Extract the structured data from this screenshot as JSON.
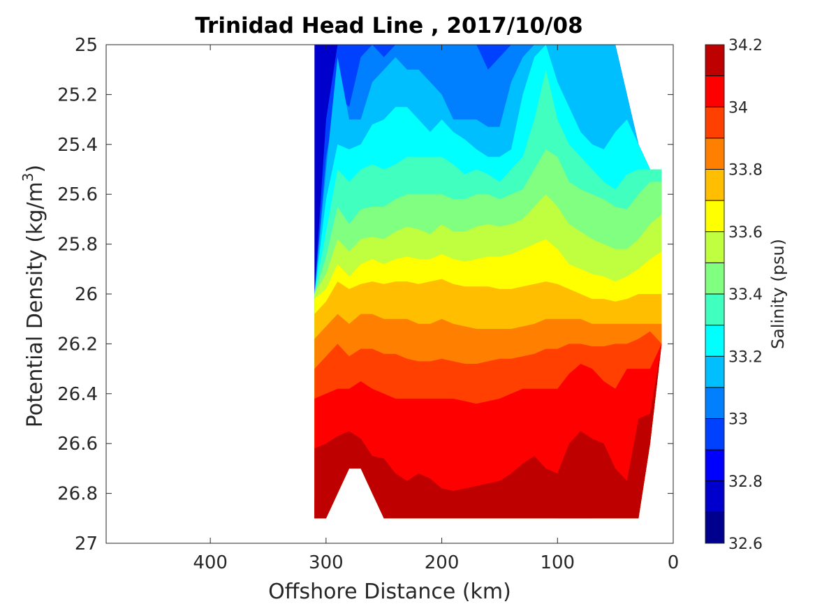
{
  "chart_data": {
    "type": "contour",
    "title": "Trinidad Head Line , 2017/10/08",
    "xlabel": "Offshore Distance (km)",
    "ylabel": "Potential Density (kg/m",
    "ylabel_superscript": "3",
    "ylabel_close": ")",
    "colorbar_label": "Salinity (psu)",
    "xlim": [
      490,
      0
    ],
    "ylim": [
      25,
      27
    ],
    "x_reversed": true,
    "y_reversed": true,
    "x_ticks": [
      400,
      300,
      200,
      100,
      0
    ],
    "x_tick_labels": [
      "400",
      "300",
      "200",
      "100",
      "0"
    ],
    "y_ticks": [
      25,
      25.2,
      25.4,
      25.6,
      25.8,
      26,
      26.2,
      26.4,
      26.6,
      26.8,
      27
    ],
    "y_tick_labels": [
      "25",
      "25.2",
      "25.4",
      "25.6",
      "25.8",
      "26",
      "26.2",
      "26.4",
      "26.6",
      "26.8",
      "27"
    ],
    "colorbar_ticks": [
      32.6,
      32.8,
      33,
      33.2,
      33.4,
      33.6,
      33.8,
      34,
      34.2
    ],
    "colorbar_tick_labels": [
      "32.6",
      "32.8",
      "33",
      "33.2",
      "33.4",
      "33.6",
      "33.8",
      "34",
      "34.2"
    ],
    "colorbar_levels": [
      32.6,
      32.7,
      32.8,
      32.9,
      33.0,
      33.1,
      33.2,
      33.3,
      33.4,
      33.5,
      33.6,
      33.7,
      33.8,
      33.9,
      34.0,
      34.1,
      34.2
    ],
    "colormap": [
      "#00008f",
      "#0000cc",
      "#0000ff",
      "#0040ff",
      "#0080ff",
      "#00bfff",
      "#00ffff",
      "#40ffbf",
      "#80ff80",
      "#bfff40",
      "#ffff00",
      "#ffbf00",
      "#ff8000",
      "#ff4000",
      "#ff0000",
      "#bf0000"
    ],
    "grid": false,
    "data_extent_km": [
      10,
      310
    ],
    "section_x_km": [
      310,
      300,
      290,
      280,
      270,
      260,
      250,
      240,
      230,
      220,
      210,
      200,
      190,
      180,
      170,
      160,
      150,
      140,
      130,
      120,
      110,
      100,
      90,
      80,
      70,
      60,
      50,
      40,
      30,
      20,
      10
    ],
    "section_top_density": [
      25.0,
      25.0,
      25.0,
      25.0,
      25.0,
      25.0,
      25.0,
      25.0,
      25.0,
      25.0,
      25.0,
      25.0,
      25.0,
      25.0,
      25.0,
      25.0,
      25.0,
      25.0,
      25.0,
      25.0,
      25.0,
      25.0,
      25.0,
      25.0,
      25.0,
      25.0,
      25.0,
      25.2,
      25.4,
      25.5,
      25.5
    ],
    "section_bottom_density": [
      26.9,
      26.9,
      26.8,
      26.7,
      26.7,
      26.8,
      26.9,
      26.9,
      26.9,
      26.9,
      26.9,
      26.9,
      26.9,
      26.9,
      26.9,
      26.9,
      26.9,
      26.9,
      26.9,
      26.9,
      26.9,
      26.9,
      26.9,
      26.9,
      26.9,
      26.9,
      26.9,
      26.9,
      26.9,
      26.6,
      26.2
    ],
    "isoline_densities": [
      {
        "salinity": 32.9,
        "depth": [
          26.0,
          25.3,
          25.0,
          25.0,
          25.0,
          25.0,
          25.0,
          25.0,
          25.0,
          25.0,
          25.0,
          25.0,
          25.0,
          25.0,
          25.0,
          25.0,
          25.0,
          25.0,
          25.0,
          25.0,
          25.0,
          25.0,
          25.0,
          25.0,
          25.0,
          25.0,
          25.0,
          25.2,
          25.4,
          25.5,
          25.5
        ]
      },
      {
        "salinity": 33.0,
        "depth": [
          26.0,
          25.45,
          25.2,
          25.25,
          25.05,
          25.0,
          25.05,
          25.0,
          25.0,
          25.0,
          25.0,
          25.0,
          25.0,
          25.0,
          25.0,
          25.1,
          25.05,
          25.0,
          25.0,
          25.0,
          25.0,
          25.0,
          25.0,
          25.0,
          25.0,
          25.0,
          25.0,
          25.2,
          25.4,
          25.5,
          25.5
        ]
      },
      {
        "salinity": 33.1,
        "depth": [
          26.0,
          25.5,
          25.05,
          25.3,
          25.3,
          25.15,
          25.1,
          25.05,
          25.1,
          25.1,
          25.15,
          25.2,
          25.3,
          25.3,
          25.3,
          25.33,
          25.33,
          25.15,
          25.05,
          25.0,
          25.0,
          25.0,
          25.0,
          25.0,
          25.0,
          25.0,
          25.0,
          25.2,
          25.4,
          25.5,
          25.5
        ]
      },
      {
        "salinity": 33.2,
        "depth": [
          26.0,
          25.62,
          25.4,
          25.42,
          25.4,
          25.32,
          25.3,
          25.25,
          25.25,
          25.3,
          25.35,
          25.3,
          25.35,
          25.38,
          25.42,
          25.45,
          25.45,
          25.42,
          25.2,
          25.05,
          25.0,
          25.15,
          25.25,
          25.35,
          25.4,
          25.42,
          25.35,
          25.3,
          25.4,
          25.5,
          25.5
        ]
      },
      {
        "salinity": 33.3,
        "depth": [
          26.0,
          25.75,
          25.5,
          25.55,
          25.5,
          25.48,
          25.5,
          25.48,
          25.45,
          25.45,
          25.45,
          25.45,
          25.48,
          25.52,
          25.5,
          25.52,
          25.55,
          25.5,
          25.45,
          25.3,
          25.1,
          25.3,
          25.4,
          25.45,
          25.5,
          25.55,
          25.58,
          25.52,
          25.5,
          25.5,
          25.5
        ]
      },
      {
        "salinity": 33.4,
        "depth": [
          26.0,
          25.85,
          25.65,
          25.72,
          25.66,
          25.65,
          25.65,
          25.62,
          25.6,
          25.6,
          25.6,
          25.6,
          25.62,
          25.62,
          25.6,
          25.6,
          25.62,
          25.6,
          25.58,
          25.5,
          25.42,
          25.45,
          25.55,
          25.58,
          25.6,
          25.62,
          25.65,
          25.66,
          25.6,
          25.55,
          25.55
        ]
      },
      {
        "salinity": 33.5,
        "depth": [
          26.0,
          25.92,
          25.78,
          25.83,
          25.78,
          25.77,
          25.78,
          25.75,
          25.73,
          25.74,
          25.76,
          25.72,
          25.75,
          25.75,
          25.73,
          25.72,
          25.73,
          25.72,
          25.7,
          25.65,
          25.6,
          25.65,
          25.72,
          25.75,
          25.78,
          25.8,
          25.82,
          25.82,
          25.78,
          25.72,
          25.68
        ]
      },
      {
        "salinity": 33.6,
        "depth": [
          26.02,
          25.98,
          25.88,
          25.93,
          25.88,
          25.86,
          25.88,
          25.86,
          25.85,
          25.86,
          25.86,
          25.84,
          25.86,
          25.87,
          25.86,
          25.85,
          25.85,
          25.84,
          25.82,
          25.8,
          25.78,
          25.82,
          25.88,
          25.9,
          25.92,
          25.93,
          25.95,
          25.93,
          25.9,
          25.86,
          25.83
        ]
      },
      {
        "salinity": 33.7,
        "depth": [
          26.08,
          26.03,
          25.95,
          25.98,
          25.96,
          25.95,
          25.96,
          25.95,
          25.95,
          25.96,
          25.95,
          25.94,
          25.96,
          25.97,
          25.97,
          25.97,
          25.98,
          25.98,
          25.97,
          25.96,
          25.95,
          25.96,
          25.98,
          26.0,
          26.02,
          26.02,
          26.03,
          26.02,
          26.0,
          26.0,
          26.0
        ]
      },
      {
        "salinity": 33.8,
        "depth": [
          26.18,
          26.13,
          26.08,
          26.12,
          26.08,
          26.08,
          26.1,
          26.1,
          26.1,
          26.12,
          26.12,
          26.1,
          26.12,
          26.13,
          26.14,
          26.14,
          26.14,
          26.14,
          26.13,
          26.12,
          26.1,
          26.1,
          26.1,
          26.1,
          26.12,
          26.12,
          26.12,
          26.12,
          26.12,
          26.12,
          26.12
        ]
      },
      {
        "salinity": 33.9,
        "depth": [
          26.3,
          26.25,
          26.2,
          26.25,
          26.22,
          26.22,
          26.24,
          26.24,
          26.26,
          26.27,
          26.27,
          26.26,
          26.27,
          26.28,
          26.28,
          26.27,
          26.26,
          26.26,
          26.25,
          26.24,
          26.22,
          26.22,
          26.2,
          26.2,
          26.21,
          26.21,
          26.2,
          26.2,
          26.18,
          26.15,
          26.2
        ]
      },
      {
        "salinity": 34.0,
        "depth": [
          26.42,
          26.4,
          26.38,
          26.38,
          26.35,
          26.38,
          26.4,
          26.42,
          26.42,
          26.42,
          26.42,
          26.42,
          26.42,
          26.43,
          26.44,
          26.43,
          26.42,
          26.4,
          26.38,
          26.38,
          26.38,
          26.38,
          26.32,
          26.28,
          26.3,
          26.35,
          26.38,
          26.3,
          26.3,
          26.3,
          26.3
        ]
      },
      {
        "salinity": 34.1,
        "depth": [
          26.62,
          26.6,
          26.57,
          26.55,
          26.58,
          26.65,
          26.66,
          26.72,
          26.75,
          26.72,
          26.74,
          26.78,
          26.79,
          26.78,
          26.77,
          26.76,
          26.75,
          26.72,
          26.68,
          26.65,
          26.7,
          26.72,
          26.6,
          26.55,
          26.58,
          26.6,
          26.7,
          26.75,
          26.5,
          26.48,
          26.35
        ]
      },
      {
        "salinity": 34.2,
        "depth": [
          26.82,
          26.78,
          26.8,
          26.85,
          26.9,
          26.9,
          26.9,
          26.9,
          26.9,
          26.9,
          26.9,
          26.9,
          26.9,
          26.9,
          26.9,
          26.9,
          26.9,
          26.9,
          26.9,
          26.9,
          26.9,
          26.9,
          26.86,
          26.84,
          26.9,
          26.9,
          26.9,
          26.9,
          26.9,
          26.9,
          26.9
        ]
      }
    ]
  }
}
